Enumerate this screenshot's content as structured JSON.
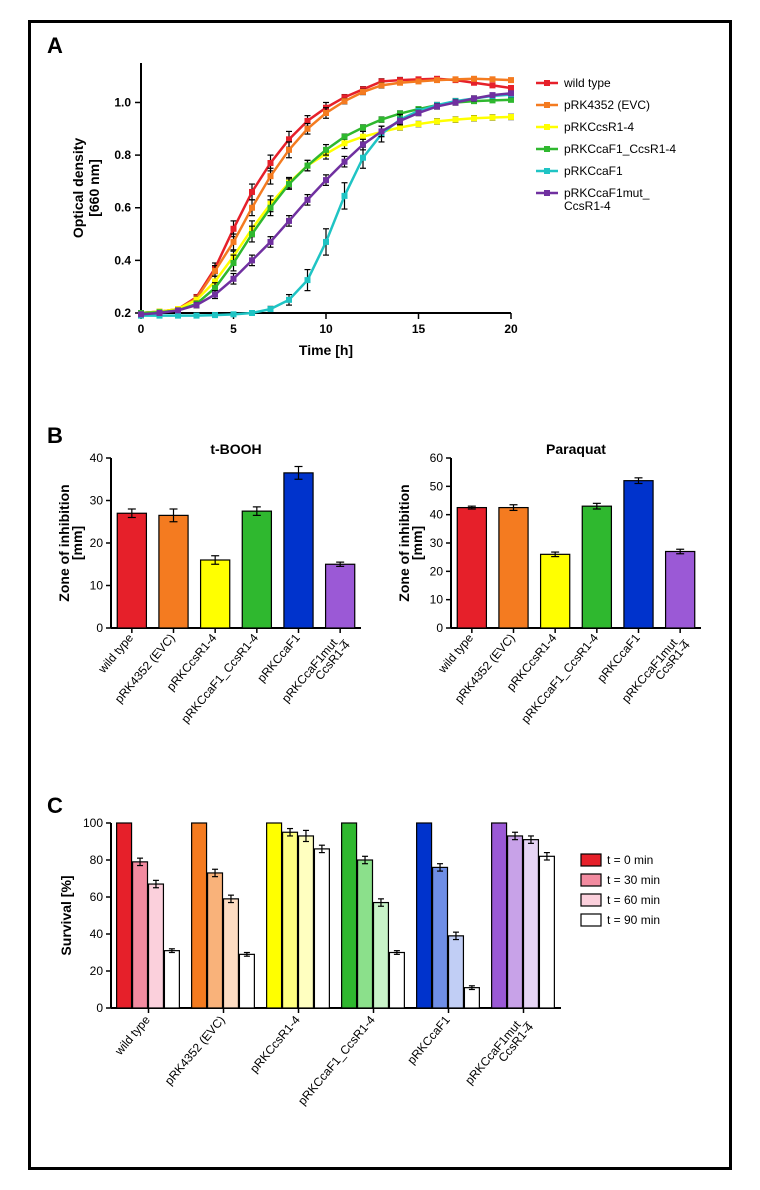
{
  "panelA": {
    "label": "A",
    "type": "line",
    "xlabel": "Time [h]",
    "ylabel_line1": "Optical density",
    "ylabel_line2": "[660 nm]",
    "xlim": [
      0,
      20
    ],
    "ylim": [
      0.2,
      1.15
    ],
    "xticks": [
      0,
      5,
      10,
      15,
      20
    ],
    "yticks": [
      0.2,
      0.4,
      0.6,
      0.8,
      1.0
    ],
    "series_colors": {
      "wild_type": "#e6202a",
      "pRK4352": "#f47b20",
      "pRKCcsR14": "#ffff00",
      "pRKCcaF1_CcsR14": "#2fb82f",
      "pRKCcaF1": "#1fc4c4",
      "pRKCcaF1mut_CcsR14": "#7030a0"
    },
    "legend_items": [
      {
        "label": "wild type",
        "color": "#e6202a"
      },
      {
        "label": "pRK4352 (EVC)",
        "color": "#f47b20"
      },
      {
        "label": "pRKCcsR1-4",
        "color": "#ffff00"
      },
      {
        "label": "pRKCcaF1_CcsR1-4",
        "color": "#2fb82f"
      },
      {
        "label": "pRKCcaF1",
        "color": "#1fc4c4"
      },
      {
        "label": "pRKCcaF1mut_\nCcsR1-4",
        "color": "#7030a0"
      }
    ],
    "series": {
      "wild_type": {
        "x": [
          0,
          1,
          2,
          3,
          4,
          5,
          6,
          7,
          8,
          9,
          10,
          11,
          12,
          13,
          14,
          15,
          16,
          17,
          18,
          19,
          20
        ],
        "y": [
          0.2,
          0.205,
          0.215,
          0.26,
          0.37,
          0.52,
          0.66,
          0.77,
          0.86,
          0.93,
          0.98,
          1.02,
          1.05,
          1.08,
          1.085,
          1.088,
          1.09,
          1.085,
          1.075,
          1.065,
          1.055
        ],
        "err": [
          0,
          0,
          0,
          0.01,
          0.02,
          0.03,
          0.03,
          0.03,
          0.03,
          0.02,
          0.02,
          0.01,
          0.01,
          0.01,
          0.01,
          0,
          0,
          0,
          0,
          0,
          0
        ]
      },
      "pRK4352": {
        "x": [
          0,
          1,
          2,
          3,
          4,
          5,
          6,
          7,
          8,
          9,
          10,
          11,
          12,
          13,
          14,
          15,
          16,
          17,
          18,
          19,
          20
        ],
        "y": [
          0.2,
          0.205,
          0.215,
          0.255,
          0.36,
          0.47,
          0.6,
          0.72,
          0.82,
          0.9,
          0.96,
          1.005,
          1.04,
          1.065,
          1.075,
          1.08,
          1.085,
          1.088,
          1.09,
          1.088,
          1.085
        ],
        "err": [
          0,
          0,
          0,
          0.01,
          0.02,
          0.03,
          0.03,
          0.03,
          0.03,
          0.02,
          0.02,
          0.01,
          0.01,
          0.01,
          0,
          0,
          0,
          0,
          0,
          0,
          0
        ]
      },
      "pRKCcsR14": {
        "x": [
          0,
          1,
          2,
          3,
          4,
          5,
          6,
          7,
          8,
          9,
          10,
          11,
          12,
          13,
          14,
          15,
          16,
          17,
          18,
          19,
          20
        ],
        "y": [
          0.2,
          0.205,
          0.215,
          0.25,
          0.32,
          0.415,
          0.52,
          0.615,
          0.695,
          0.76,
          0.805,
          0.845,
          0.87,
          0.888,
          0.905,
          0.918,
          0.928,
          0.935,
          0.94,
          0.943,
          0.945
        ],
        "err": [
          0,
          0,
          0.005,
          0.01,
          0.02,
          0.02,
          0.03,
          0.03,
          0.02,
          0.02,
          0.02,
          0.02,
          0.02,
          0.01,
          0.01,
          0.01,
          0.01,
          0.01,
          0.01,
          0.01,
          0.01
        ]
      },
      "pRKCcaF1_CcsR14": {
        "x": [
          0,
          1,
          2,
          3,
          4,
          5,
          6,
          7,
          8,
          9,
          10,
          11,
          12,
          13,
          14,
          15,
          16,
          17,
          18,
          19,
          20
        ],
        "y": [
          0.2,
          0.203,
          0.21,
          0.235,
          0.295,
          0.39,
          0.5,
          0.6,
          0.69,
          0.76,
          0.82,
          0.87,
          0.905,
          0.935,
          0.958,
          0.975,
          0.99,
          1.0,
          1.005,
          1.008,
          1.01
        ],
        "err": [
          0,
          0,
          0.005,
          0.01,
          0.02,
          0.03,
          0.03,
          0.03,
          0.02,
          0.02,
          0.02,
          0.01,
          0.01,
          0.01,
          0.01,
          0,
          0,
          0,
          0,
          0,
          0
        ]
      },
      "pRKCcaF1": {
        "x": [
          0,
          1,
          2,
          3,
          4,
          5,
          6,
          7,
          8,
          9,
          10,
          11,
          12,
          13,
          14,
          15,
          16,
          17,
          18,
          19,
          20
        ],
        "y": [
          0.19,
          0.19,
          0.19,
          0.19,
          0.192,
          0.195,
          0.2,
          0.215,
          0.25,
          0.325,
          0.47,
          0.645,
          0.79,
          0.88,
          0.935,
          0.968,
          0.99,
          1.005,
          1.015,
          1.025,
          1.03
        ],
        "err": [
          0,
          0,
          0,
          0,
          0,
          0,
          0.005,
          0.01,
          0.02,
          0.04,
          0.05,
          0.05,
          0.04,
          0.03,
          0.02,
          0.01,
          0.01,
          0.01,
          0.01,
          0.01,
          0.01
        ]
      },
      "pRKCcaF1mut_CcsR14": {
        "x": [
          0,
          1,
          2,
          3,
          4,
          5,
          6,
          7,
          8,
          9,
          10,
          11,
          12,
          13,
          14,
          15,
          16,
          17,
          18,
          19,
          20
        ],
        "y": [
          0.195,
          0.2,
          0.21,
          0.23,
          0.27,
          0.33,
          0.4,
          0.47,
          0.55,
          0.63,
          0.705,
          0.775,
          0.84,
          0.89,
          0.93,
          0.96,
          0.985,
          1.0,
          1.015,
          1.028,
          1.035
        ],
        "err": [
          0,
          0,
          0.005,
          0.01,
          0.015,
          0.02,
          0.02,
          0.02,
          0.02,
          0.02,
          0.02,
          0.02,
          0.02,
          0.02,
          0.01,
          0.01,
          0.01,
          0.01,
          0,
          0,
          0
        ]
      }
    }
  },
  "panelB": {
    "label": "B",
    "type": "bar",
    "ylabel": "Zone of inhibition\n[mm]",
    "categories": [
      "wild type",
      "pRK4352 (EVC)",
      "pRKCcsR1-4",
      "pRKCcaF1_CcsR1-4",
      "pRKCcaF1",
      "pRKCcaF1mut_\nCcsR1-4"
    ],
    "bar_colors": [
      "#e6202a",
      "#f47b20",
      "#ffff00",
      "#2fb82f",
      "#0033cc",
      "#9b59d6"
    ],
    "bar_width": 0.7,
    "charts": [
      {
        "title": "t-BOOH",
        "ylim": [
          0,
          40
        ],
        "ytick_step": 10,
        "values": [
          27,
          26.5,
          16,
          27.5,
          36.5,
          15
        ],
        "err": [
          1,
          1.5,
          1,
          1,
          1.5,
          0.5
        ]
      },
      {
        "title": "Paraquat",
        "ylim": [
          0,
          60
        ],
        "ytick_step": 10,
        "values": [
          42.5,
          42.5,
          26,
          43,
          52,
          27
        ],
        "err": [
          0.5,
          1,
          0.8,
          1,
          1,
          0.8
        ]
      }
    ]
  },
  "panelC": {
    "label": "C",
    "type": "grouped-bar",
    "ylabel": "Survival [%]",
    "ylim": [
      0,
      100
    ],
    "ytick_step": 20,
    "categories": [
      "wild type",
      "pRK4352 (EVC)",
      "pRKCcsR1-4",
      "pRKCcaF1_CcsR1-4",
      "pRKCcaF1",
      "pRKCcaF1mut_\nCcsR1-4"
    ],
    "group_base_colors": [
      "#e6202a",
      "#f47b20",
      "#ffff00",
      "#2fb82f",
      "#0033cc",
      "#9b59d6"
    ],
    "time_legend": [
      {
        "label": "t = 0 min",
        "fill": "#e6202a"
      },
      {
        "label": "t = 30 min",
        "fill": "#f28ba0"
      },
      {
        "label": "t = 60 min",
        "fill": "#fbd0dc"
      },
      {
        "label": "t = 90 min",
        "fill": "#ffffff"
      }
    ],
    "group_shades": {
      "wild_type": [
        "#e6202a",
        "#f28ba0",
        "#fbd0dc",
        "#ffffff"
      ],
      "pRK4352": [
        "#f47b20",
        "#f9b27a",
        "#fddcc2",
        "#ffffff"
      ],
      "pRKCcsR14": [
        "#ffff00",
        "#ffff80",
        "#ffffc0",
        "#ffffff"
      ],
      "pRKCcaF1_CcsR14": [
        "#2fb82f",
        "#8be08b",
        "#c8f3c8",
        "#ffffff"
      ],
      "pRKCcaF1": [
        "#0033cc",
        "#6f8ee6",
        "#c1cef5",
        "#ffffff"
      ],
      "pRKCcaF1mut_CcsR14": [
        "#9b59d6",
        "#c8a2e8",
        "#e6d4f5",
        "#ffffff"
      ]
    },
    "values": {
      "wild_type": [
        100,
        79,
        67,
        31
      ],
      "pRK4352": [
        100,
        73,
        59,
        29
      ],
      "pRKCcsR14": [
        100,
        95,
        93,
        86
      ],
      "pRKCcaF1_CcsR14": [
        100,
        80,
        57,
        30
      ],
      "pRKCcaF1": [
        100,
        76,
        39,
        11
      ],
      "pRKCcaF1mut_CcsR14": [
        100,
        93,
        91,
        82
      ]
    },
    "err": {
      "wild_type": [
        0,
        2,
        2,
        1
      ],
      "pRK4352": [
        0,
        2,
        2,
        1
      ],
      "pRKCcsR14": [
        0,
        2,
        3,
        2
      ],
      "pRKCcaF1_CcsR14": [
        0,
        2,
        2,
        1
      ],
      "pRKCcaF1": [
        0,
        2,
        2,
        1
      ],
      "pRKCcaF1mut_CcsR14": [
        0,
        2,
        2,
        2
      ]
    }
  }
}
